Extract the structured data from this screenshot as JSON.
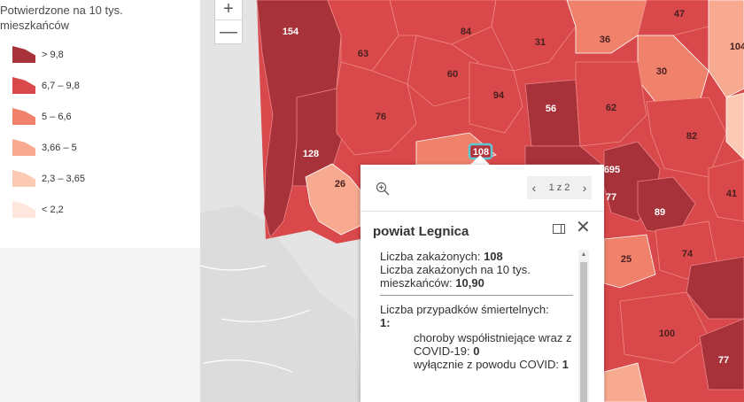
{
  "legend": {
    "title": "Potwierdzone na 10 tys. mieszkańców",
    "items": [
      {
        "label": "> 9,8",
        "color": "#a8323a"
      },
      {
        "label": "6,7 – 9,8",
        "color": "#d9484a"
      },
      {
        "label": "5 – 6,6",
        "color": "#f0826c"
      },
      {
        "label": "3,66 – 5",
        "color": "#f8aa90"
      },
      {
        "label": "2,3 – 3,65",
        "color": "#fbc9b4"
      },
      {
        "label": "< 2,2",
        "color": "#fde6dc"
      }
    ]
  },
  "zoom": {
    "in": "+",
    "out": "—"
  },
  "map_labels": [
    "154",
    "84",
    "47",
    "63",
    "31",
    "36",
    "104",
    "60",
    "30",
    "94",
    "76",
    "56",
    "62",
    "82",
    "128",
    "108",
    "695",
    "26",
    "77",
    "41",
    "89",
    "25",
    "74",
    "100",
    "77"
  ],
  "popup": {
    "pager": {
      "prev": "‹",
      "text": "1 z 2",
      "next": "›"
    },
    "title": "powiat Legnica",
    "cases_label": "Liczba zakażonych:",
    "cases_value": "108",
    "rate_label_1": "Liczba zakażonych na 10 tys.",
    "rate_label_2": "mieszkańców:",
    "rate_value": "10,90",
    "deaths_label": "Liczba przypadków śmiertelnych:",
    "deaths_value": "1:",
    "comorbid_label": "choroby współistniejące wraz z COVID-19:",
    "comorbid_value": "0",
    "covid_only_label": "wyłącznie z powodu COVID:",
    "covid_only_value": "1"
  },
  "icons": {
    "zoom_to": "magnifier-plus-icon",
    "dock": "dock-icon",
    "close": "close-icon"
  }
}
